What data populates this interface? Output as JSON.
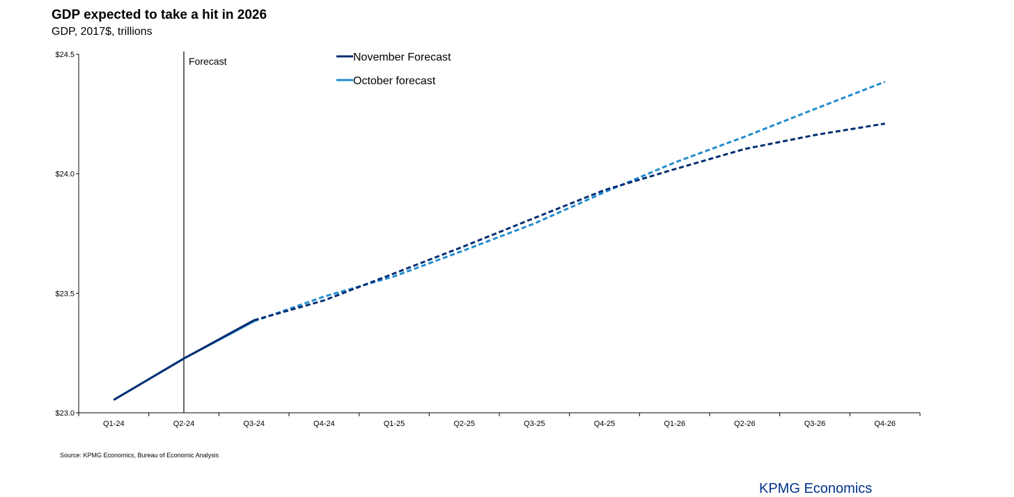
{
  "header": {
    "title": "GDP expected to take a hit in 2026",
    "subtitle": "GDP, 2017$, trillions"
  },
  "footer": {
    "source": "Source: KPMG Economics, Bureau of Economic Analysis",
    "brand": "KPMG Economics"
  },
  "chart_data": {
    "type": "line",
    "title": "GDP expected to take a hit in 2026",
    "subtitle": "GDP, 2017$, trillions",
    "xlabel": "",
    "ylabel": "",
    "categories": [
      "Q1-24",
      "Q2-24",
      "Q3-24",
      "Q4-24",
      "Q1-25",
      "Q2-25",
      "Q3-25",
      "Q4-25",
      "Q1-26",
      "Q2-26",
      "Q3-26",
      "Q4-26"
    ],
    "ylim": [
      23.0,
      24.5
    ],
    "yticks": [
      23.0,
      23.5,
      24.0,
      24.5
    ],
    "ytick_labels": [
      "$23.0",
      "$23.5",
      "$24.0",
      "$24.5"
    ],
    "grid": false,
    "legend_position": "top-center",
    "annotations": [
      {
        "text": "Forecast",
        "at_category": "Q2-24",
        "kind": "vertical-line"
      }
    ],
    "series": [
      {
        "name": "November Forecast",
        "color": "#002d72",
        "values": [
          23.054,
          23.227,
          23.387,
          23.47,
          23.583,
          23.697,
          23.815,
          23.932,
          24.019,
          24.104,
          24.162,
          24.21
        ],
        "forecast_from_index": 2
      },
      {
        "name": "October forecast",
        "color": "#1f8ccf",
        "values": [
          23.054,
          23.227,
          23.383,
          23.486,
          23.571,
          23.68,
          23.792,
          23.923,
          24.047,
          24.155,
          24.271,
          24.385
        ],
        "forecast_from_index": 2
      }
    ]
  }
}
